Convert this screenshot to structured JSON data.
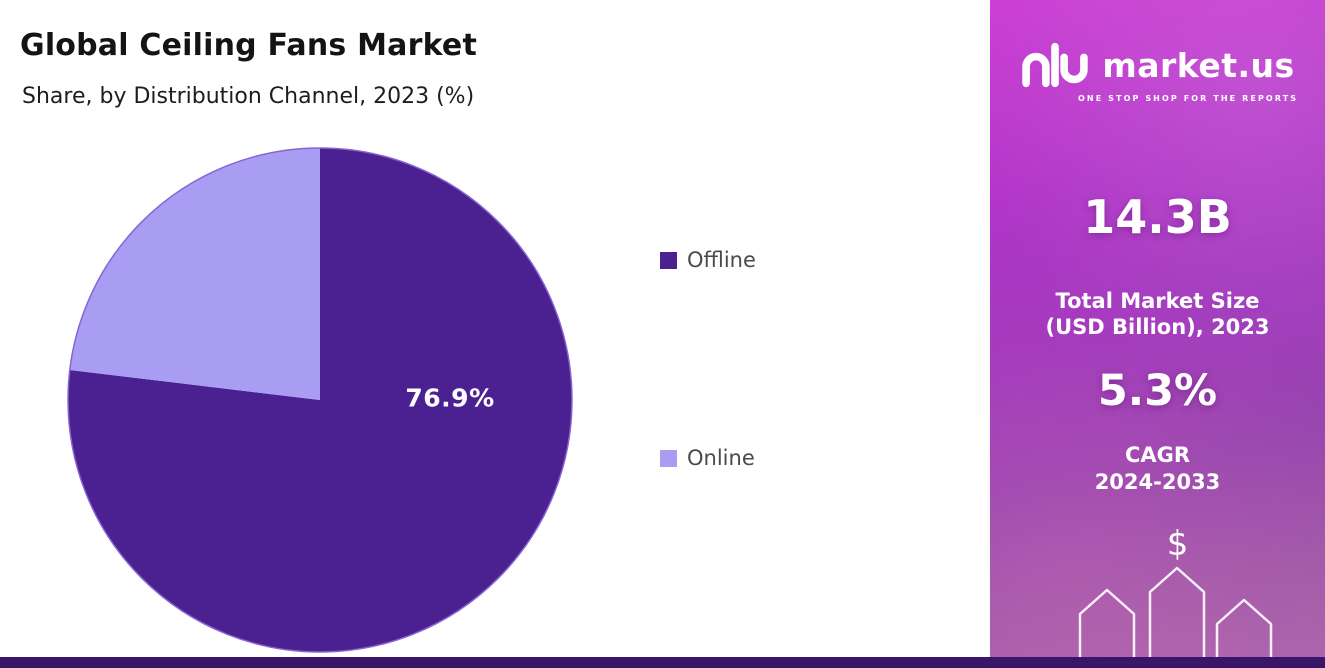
{
  "page": {
    "title": "Global Ceiling Fans Market",
    "subtitle": "Share, by Distribution Channel, 2023 (%)"
  },
  "chart_data": {
    "type": "pie",
    "title": "Global Ceiling Fans Market",
    "subtitle": "Share, by Distribution Channel, 2023 (%)",
    "categories": [
      "Offline",
      "Online"
    ],
    "values": [
      76.9,
      23.1
    ],
    "unit": "%",
    "colors": [
      "#4b2191",
      "#a89df3"
    ],
    "outline_color": "#8a63d2",
    "data_label": "76.9%",
    "start_angle_deg": -90,
    "direction": "clockwise",
    "legend_position": "right",
    "year": "2023"
  },
  "sidebar": {
    "brand_name": "market.us",
    "brand_tagline": "ONE STOP SHOP FOR THE REPORTS",
    "stat1_value": "14.3B",
    "stat1_label_line1": "Total Market Size",
    "stat1_label_line2": "(USD Billion), 2023",
    "stat2_value": "5.3%",
    "stat2_label_line1": "CAGR",
    "stat2_label_line2": "2024-2033",
    "dollar_symbol": "$"
  },
  "colors": {
    "offline_slice": "#4b2191",
    "online_slice": "#a89df3",
    "panel_gradient_top": "#cb3fd4",
    "panel_gradient_bottom": "#ab66ad",
    "bottom_strip": "#3a1668",
    "pie_value_text": "#ffffff"
  }
}
